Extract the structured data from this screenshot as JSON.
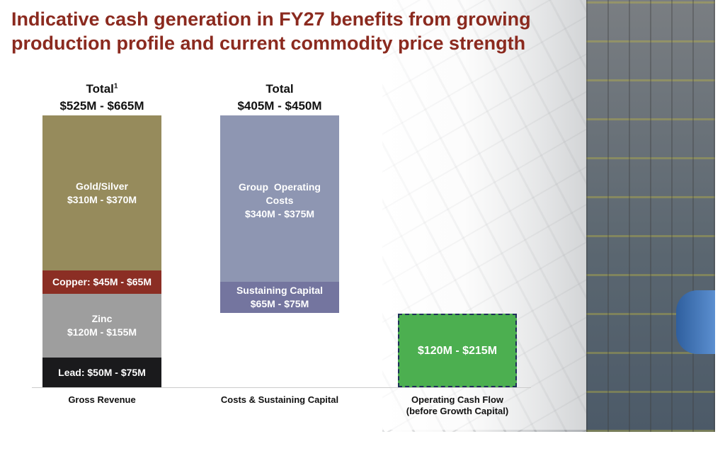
{
  "title": [
    "Indicative cash generation in FY27 benefits from growing",
    "production profile and current commodity price strength"
  ],
  "columns": [
    {
      "header": [
        "Total",
        "$525M - $665M"
      ],
      "footnote": "1",
      "segments": [
        {
          "lines": [
            "Gold/Silver",
            "$310M - $370M"
          ]
        },
        {
          "lines": [
            "Copper: $45M - $65M"
          ]
        },
        {
          "lines": [
            "Zinc",
            "$120M - $155M"
          ]
        },
        {
          "lines": [
            "Lead: $50M - $75M"
          ]
        }
      ],
      "label": [
        "Gross Revenue"
      ]
    },
    {
      "header": [
        "Total",
        "$405M - $450M"
      ],
      "segments": [
        {
          "lines": [
            "Group  Operating",
            "Costs",
            "$340M - $375M"
          ]
        },
        {
          "lines": [
            "Sustaining Capital",
            "$65M - $75M"
          ]
        }
      ],
      "label": [
        "Costs & Sustaining Capital"
      ]
    },
    {
      "segments": [
        {
          "lines": [
            "$120M - $215M"
          ]
        }
      ],
      "label": [
        "Operating Cash Flow",
        "(before Growth Capital)"
      ]
    }
  ]
}
